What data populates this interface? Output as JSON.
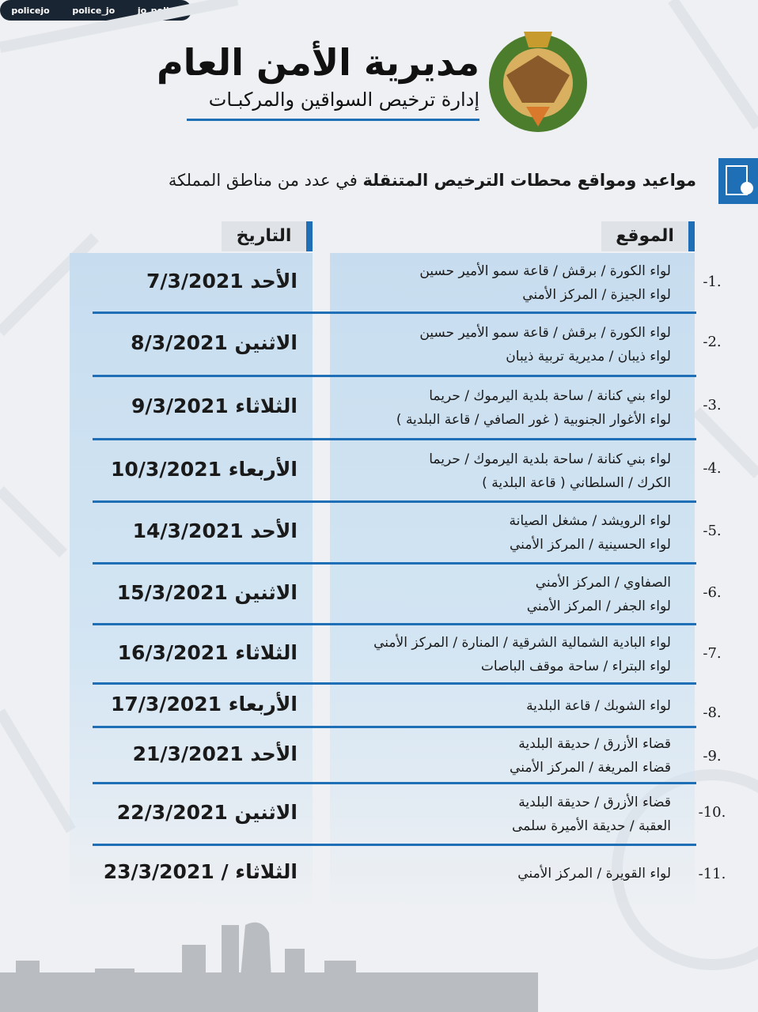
{
  "header": {
    "title": "مديرية الأمن العام",
    "subtitle": "إدارة ترخيص السواقين والمركبـات"
  },
  "heading": {
    "bold": "مواعيد ومواقع محطات الترخيص المتنقلة",
    "normal": "في عدد من مناطق المملكة"
  },
  "table": {
    "columns": [
      "الموقع",
      "التاريخ"
    ],
    "rows": [
      {
        "number": "-1.",
        "location": [
          "لواء الكورة / برقش / قاعة سمو الأمير حسين",
          "لواء الجيزة / المركز الأمني"
        ],
        "date": "الأحد 7/3/2021"
      },
      {
        "number": "-2.",
        "location": [
          "لواء الكورة / برقش / قاعة سمو الأمير حسين",
          "لواء ذيبان / مديرية تربية ذيبان"
        ],
        "date": "الاثنين 8/3/2021"
      },
      {
        "number": "-3.",
        "location": [
          "لواء بني كنانة / ساحة بلدية اليرموك / حريما",
          "لواء الأغوار الجنوبية ( غور الصافي / قاعة البلدية )"
        ],
        "date": "الثلاثاء 9/3/2021"
      },
      {
        "number": "-4.",
        "location": [
          "لواء بني كنانة / ساحة بلدية اليرموك / حريما",
          "الكرك / السلطاني ( قاعة البلدية )"
        ],
        "date": "الأربعاء 10/3/2021"
      },
      {
        "number": "-5.",
        "location": [
          "لواء الرويشد / مشغل الصيانة",
          "لواء الحسينية / المركز الأمني"
        ],
        "date": "الأحد 14/3/2021"
      },
      {
        "number": "-6.",
        "location": [
          "الصفاوي / المركز الأمني",
          "لواء الجفر / المركز الأمني"
        ],
        "date": "الاثنين 15/3/2021"
      },
      {
        "number": "-7.",
        "location": [
          "لواء البادية الشمالية الشرقية / المنارة / المركز الأمني",
          "لواء البتراء / ساحة موقف الباصات"
        ],
        "date": "الثلاثاء 16/3/2021"
      },
      {
        "number": "-8.",
        "location": [
          "لواء الشوبك / قاعة البلدية"
        ],
        "date": "الأربعاء 17/3/2021"
      },
      {
        "number": "-9.",
        "location": [
          "قضاء الأزرق / حديقة البلدية",
          "قضاء المريغة / المركز الأمني"
        ],
        "date": "الأحد 21/3/2021"
      },
      {
        "number": "-10.",
        "location": [
          "قضاء الأزرق / حديقة البلدية",
          "العقبة / حديقة الأميرة سلمى"
        ],
        "date": "الاثنين 22/3/2021"
      },
      {
        "number": "-11.",
        "location": [
          "لواء القويرة / المركز الأمني"
        ],
        "date": "الثلاثاء / 23/3/2021"
      }
    ]
  },
  "footer": {
    "social": [
      "policejo",
      "police_jo",
      "jo_police"
    ]
  }
}
